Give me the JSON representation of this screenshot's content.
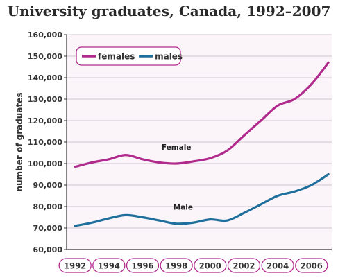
{
  "chart_data": {
    "type": "line",
    "title": "University graduates, Canada, 1992–2007",
    "ylabel": "number of graduates",
    "ylim": [
      60000,
      160000
    ],
    "xlim": [
      1991.5,
      2007.2
    ],
    "yticks": [
      60000,
      70000,
      80000,
      90000,
      100000,
      110000,
      120000,
      130000,
      140000,
      150000,
      160000
    ],
    "ytick_labels": [
      "60,000",
      "70,000",
      "80,000",
      "90,000",
      "100,000",
      "110,000",
      "120,000",
      "130,000",
      "140,000",
      "150,000",
      "160,000"
    ],
    "xticks": [
      1992,
      1994,
      1996,
      1998,
      2000,
      2002,
      2004,
      2006
    ],
    "xtick_labels": [
      "1992",
      "1994",
      "1996",
      "1998",
      "2000",
      "2002",
      "2004",
      "2006"
    ],
    "x": [
      1992,
      1993,
      1994,
      1995,
      1996,
      1997,
      1998,
      1999,
      2000,
      2001,
      2002,
      2003,
      2004,
      2005,
      2006,
      2007
    ],
    "series": [
      {
        "name": "females",
        "color": "#b0298c",
        "values": [
          98500,
          100500,
          102000,
          104000,
          102000,
          100500,
          100000,
          101000,
          102500,
          106000,
          113000,
          120000,
          127000,
          130000,
          137000,
          147000
        ]
      },
      {
        "name": "males",
        "color": "#1e6f9c",
        "values": [
          71000,
          72500,
          74500,
          76000,
          75000,
          73500,
          72000,
          72500,
          74000,
          73500,
          77000,
          81000,
          85000,
          87000,
          90000,
          95000
        ]
      }
    ],
    "annotations": [
      {
        "text": "Female",
        "x": 1998,
        "y": 106500
      },
      {
        "text": "Male",
        "x": 1998.4,
        "y": 78500
      }
    ],
    "grid": true,
    "legend": "top-left"
  }
}
